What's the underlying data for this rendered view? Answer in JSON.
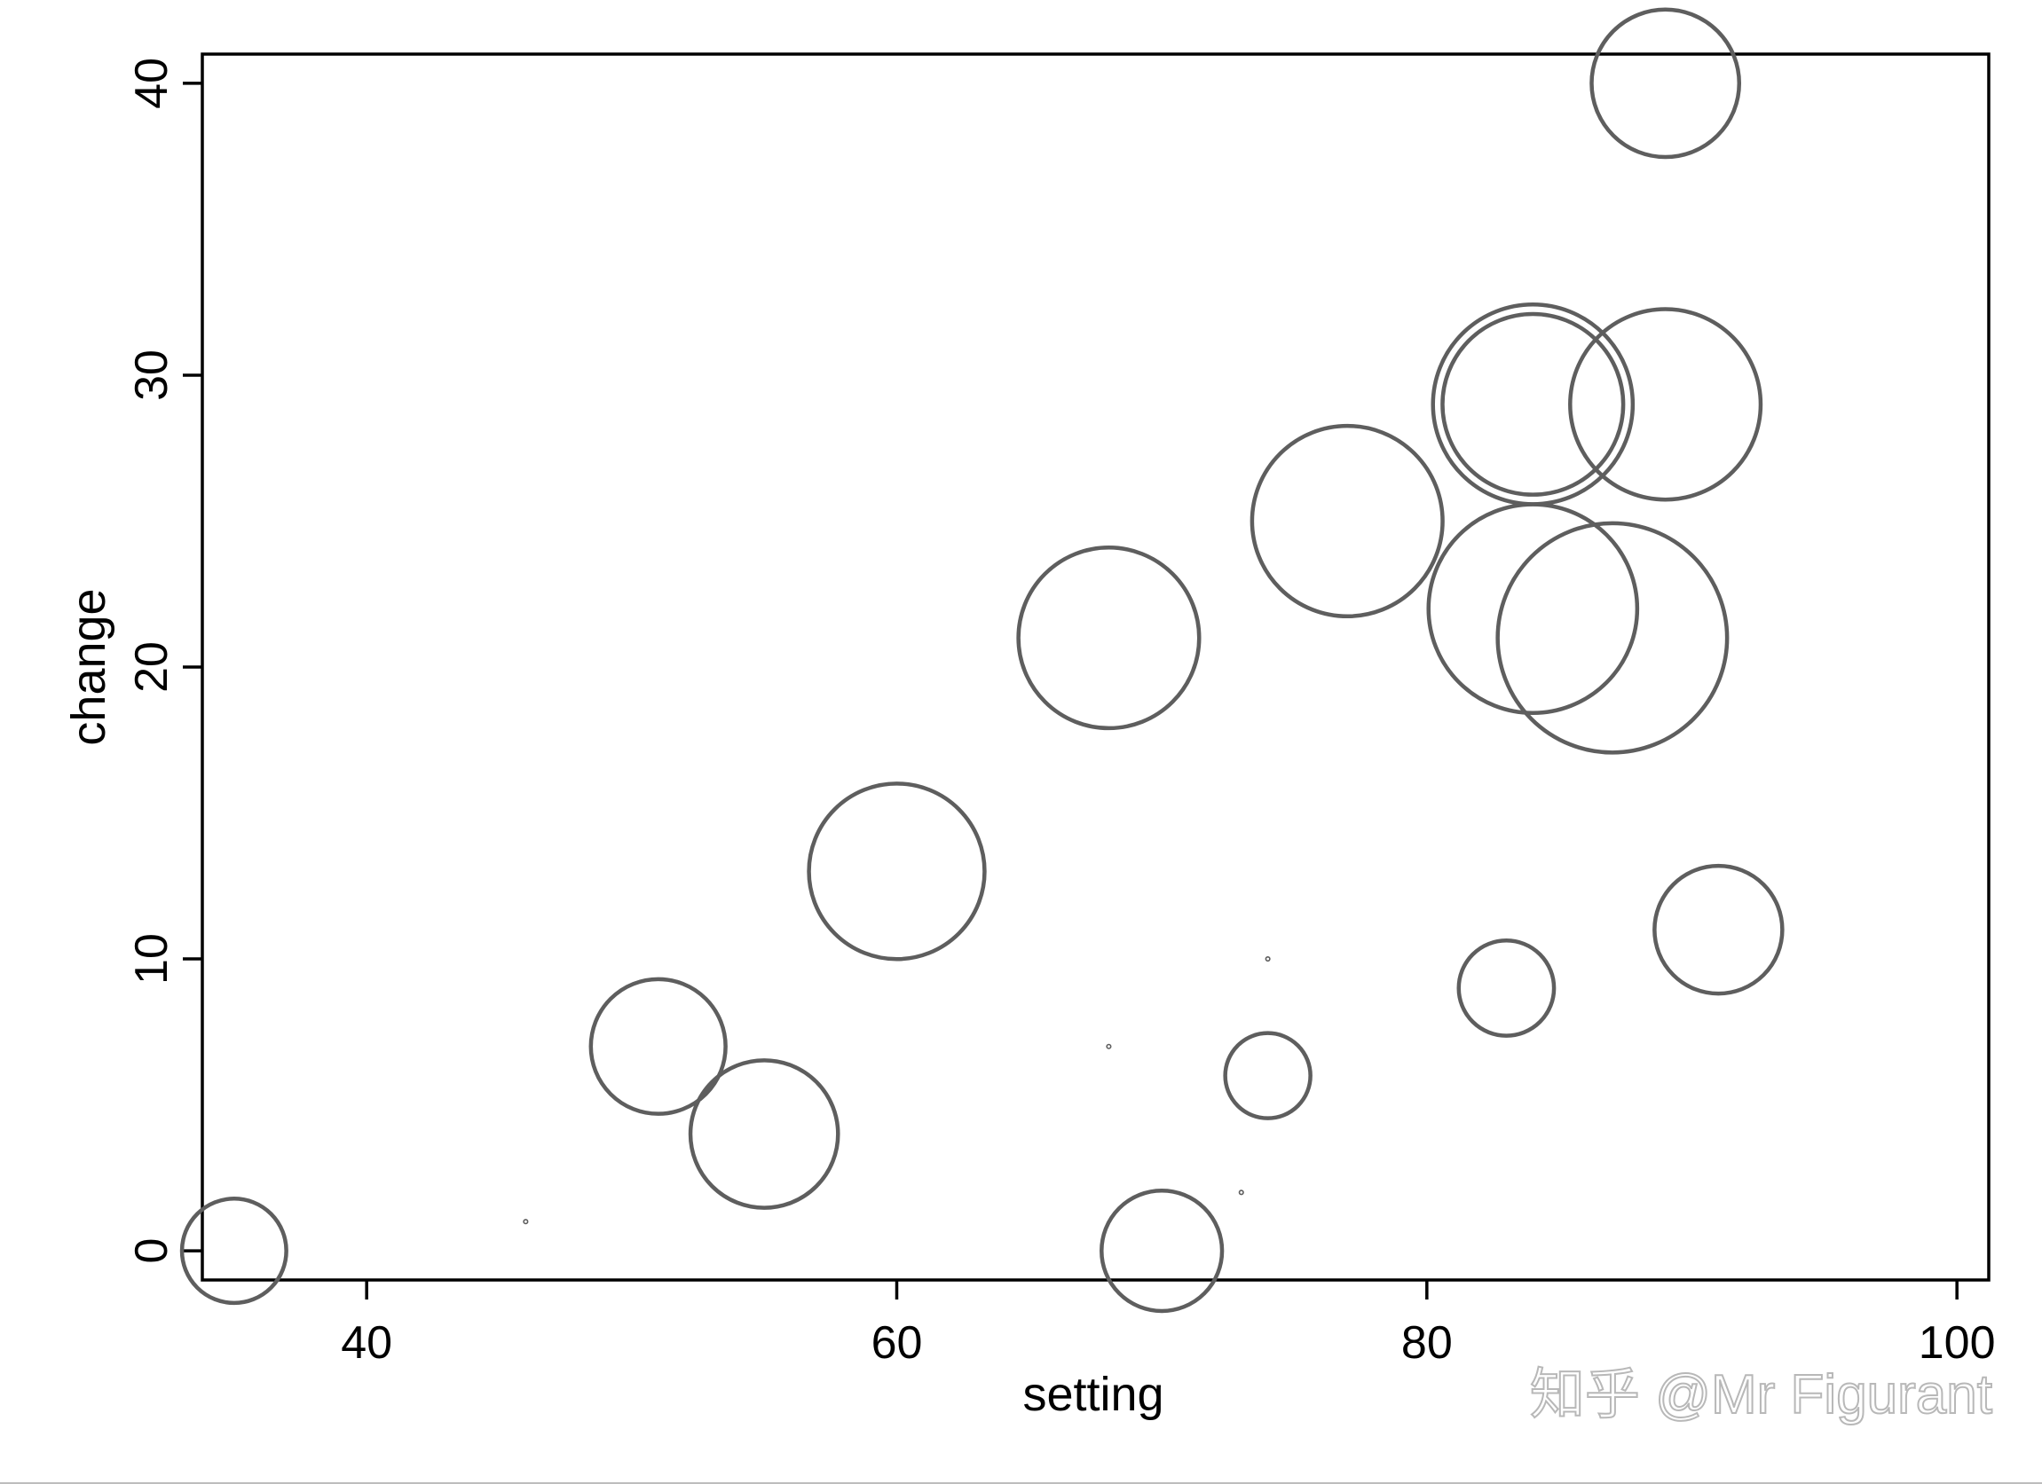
{
  "chart_data": {
    "type": "scatter",
    "title": "",
    "xlabel": "setting",
    "ylabel": "change",
    "xlim": [
      33.8,
      101.2
    ],
    "ylim": [
      -1,
      41
    ],
    "x_ticks": [
      40,
      60,
      80,
      100
    ],
    "y_ticks": [
      0,
      10,
      20,
      30,
      40
    ],
    "grid": false,
    "legend": "none",
    "points": [
      {
        "x": 35,
        "y": 0,
        "size": 6
      },
      {
        "x": 46,
        "y": 1,
        "size": 0
      },
      {
        "x": 51,
        "y": 7,
        "size": 10
      },
      {
        "x": 55,
        "y": 4,
        "size": 12
      },
      {
        "x": 60,
        "y": 13,
        "size": 17
      },
      {
        "x": 68,
        "y": 21,
        "size": 18
      },
      {
        "x": 68,
        "y": 7,
        "size": 0
      },
      {
        "x": 70,
        "y": 0,
        "size": 8
      },
      {
        "x": 73,
        "y": 2,
        "size": 0
      },
      {
        "x": 74,
        "y": 10,
        "size": 0
      },
      {
        "x": 74,
        "y": 6,
        "size": 4
      },
      {
        "x": 77,
        "y": 25,
        "size": 20
      },
      {
        "x": 83,
        "y": 9,
        "size": 5
      },
      {
        "x": 84,
        "y": 29,
        "size": 22
      },
      {
        "x": 84,
        "y": 29,
        "size": 18
      },
      {
        "x": 84,
        "y": 22,
        "size": 24
      },
      {
        "x": 87,
        "y": 21,
        "size": 29
      },
      {
        "x": 89,
        "y": 29,
        "size": 20
      },
      {
        "x": 89,
        "y": 40,
        "size": 12
      },
      {
        "x": 91,
        "y": 11,
        "size": 9
      }
    ]
  },
  "watermark": {
    "text": "知乎 @Mr Figurant"
  },
  "colors": {
    "bubble_stroke": "#5e5e5e",
    "axis": "#000000",
    "watermark": "#b8b8b8"
  }
}
